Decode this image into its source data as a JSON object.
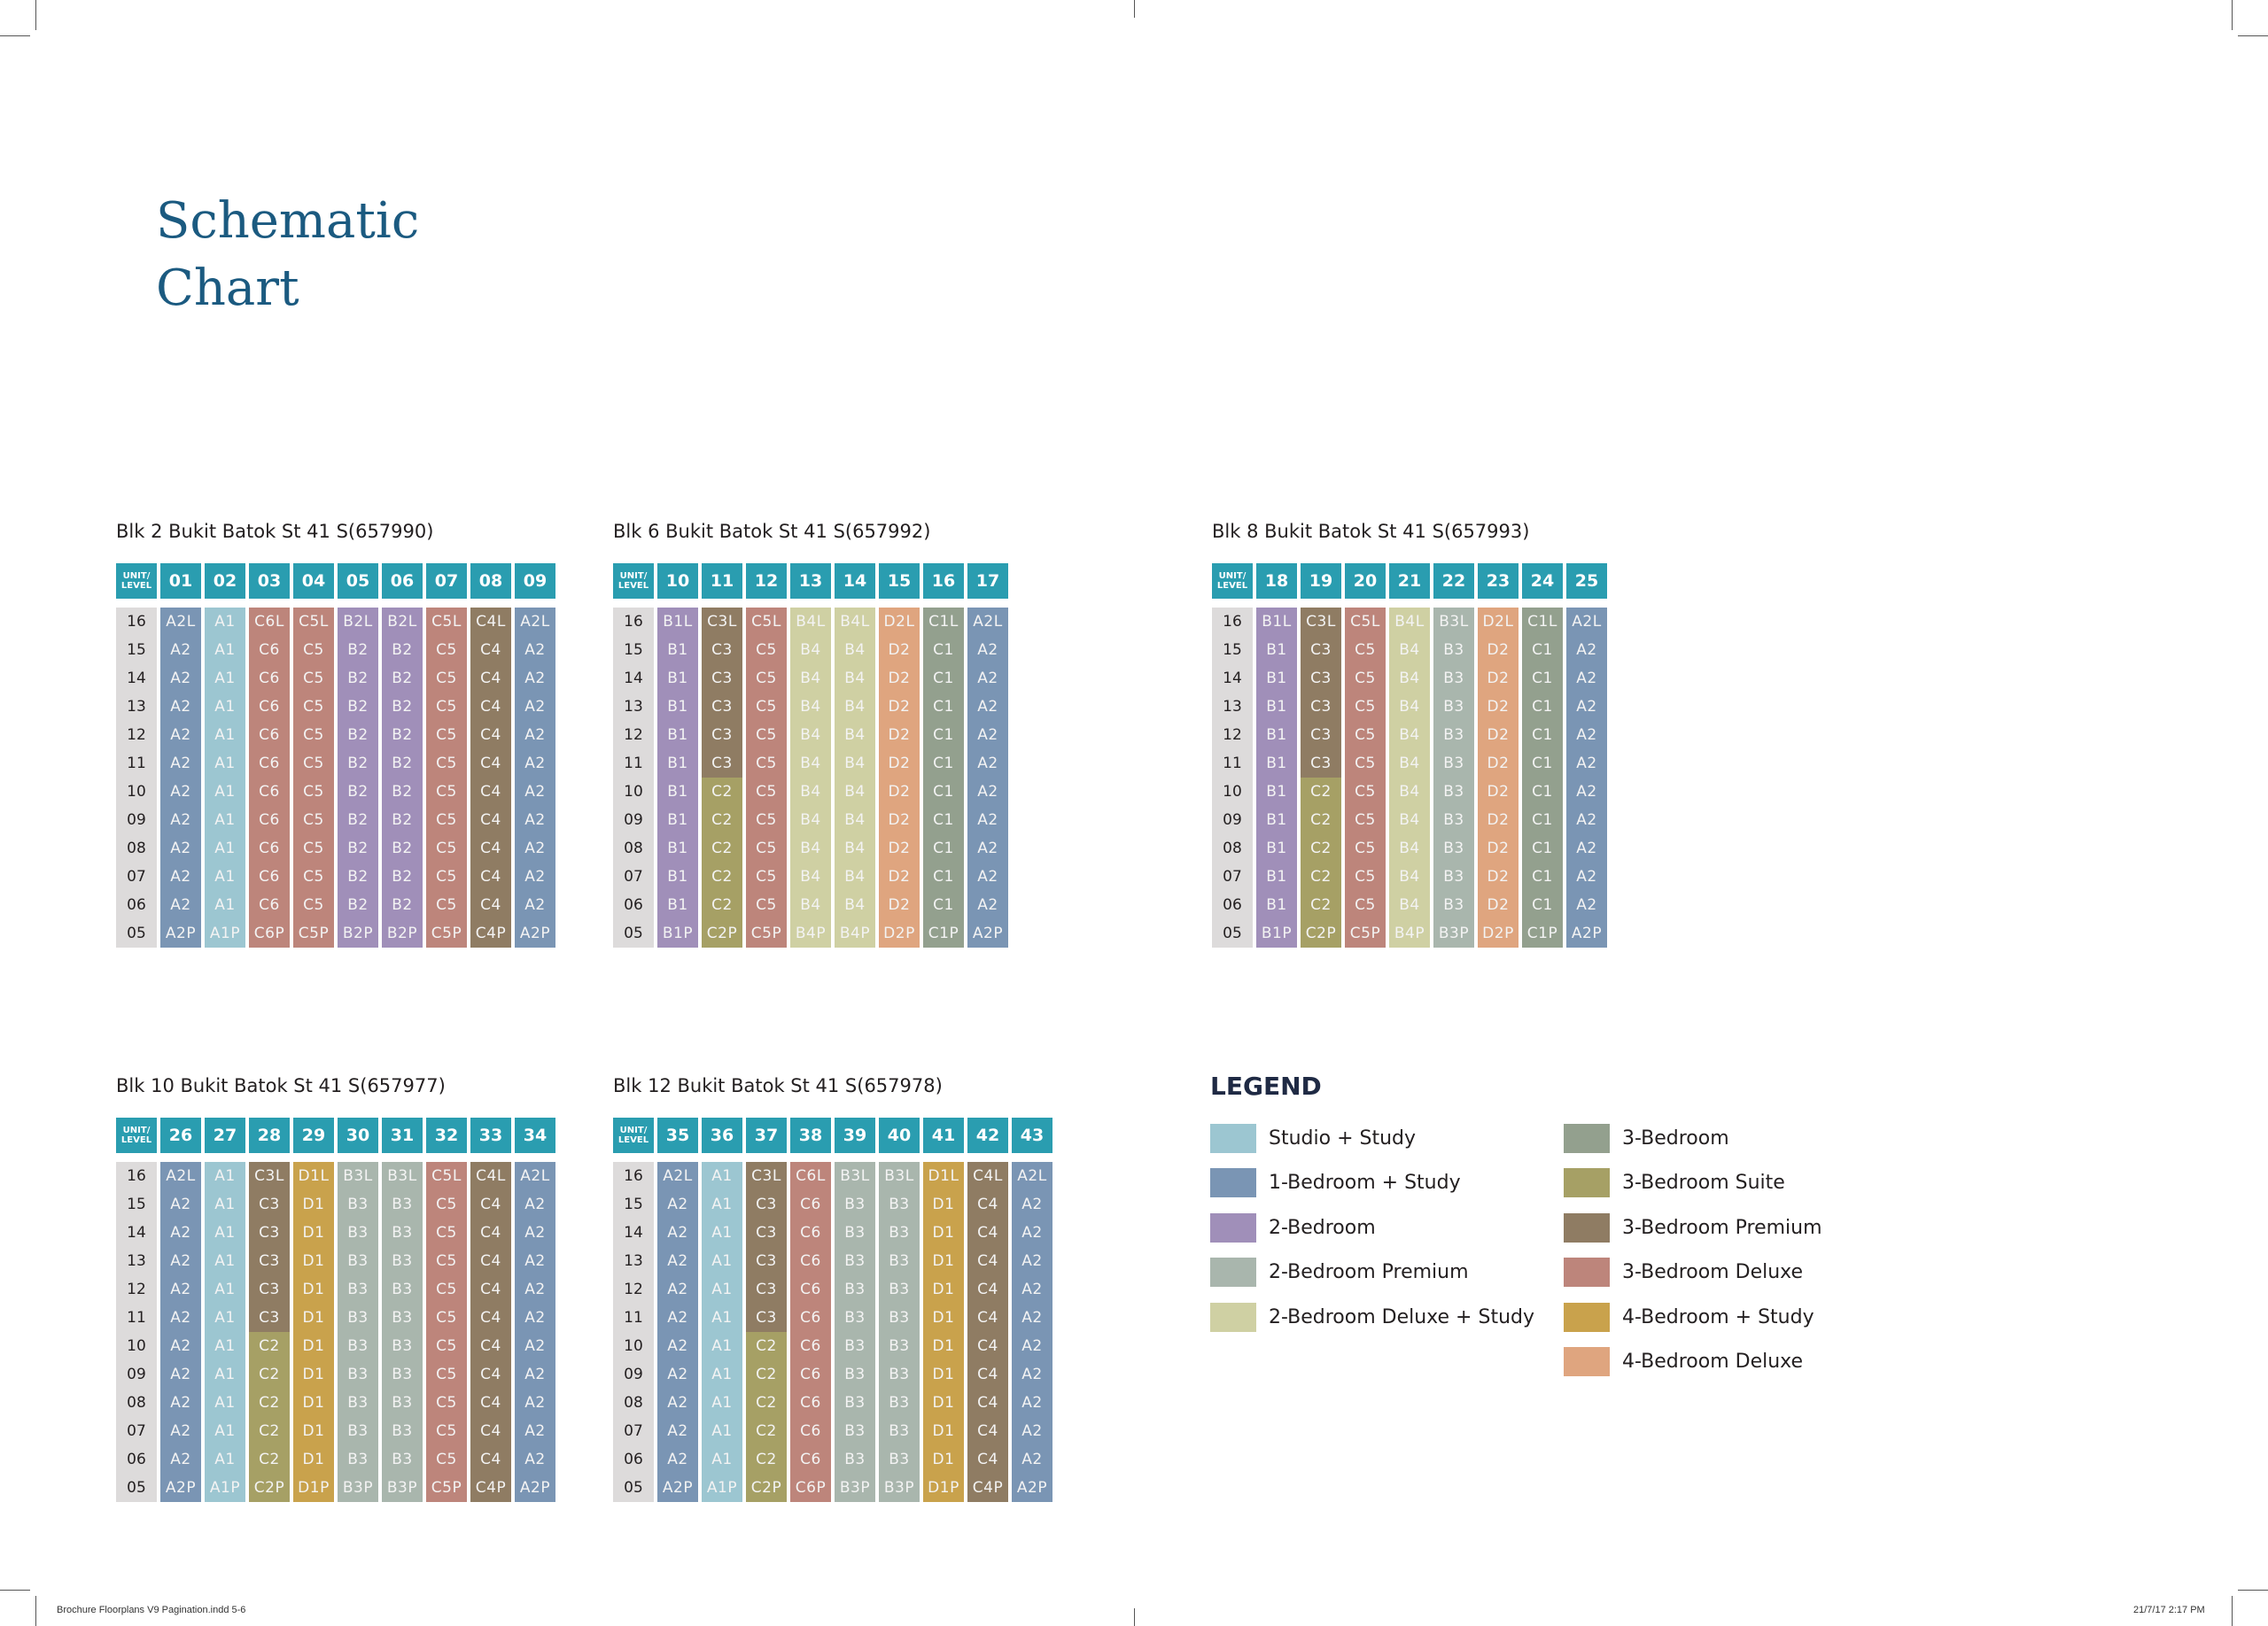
{
  "title": {
    "line1": "Schematic",
    "line2": "Chart"
  },
  "header_corner": {
    "l1": "UNIT/",
    "l2": "LEVEL"
  },
  "levels": [
    "16",
    "15",
    "14",
    "13",
    "12",
    "11",
    "10",
    "09",
    "08",
    "07",
    "06",
    "05"
  ],
  "colors": {
    "Studio + Study": "#9cc6d1",
    "1-Bedroom + Study": "#7a95b4",
    "2-Bedroom": "#a08fb9",
    "2-Bedroom Premium": "#a9b6ad",
    "2-Bedroom Deluxe + Study": "#cfd0a3",
    "3-Bedroom": "#93a08e",
    "3-Bedroom Suite": "#a6a065",
    "3-Bedroom Premium": "#8f7c63",
    "3-Bedroom Deluxe": "#bd857b",
    "4-Bedroom + Study": "#c9a24c",
    "4-Bedroom Deluxe": "#dfa57f",
    "header": "#2a9db0",
    "level": "#dddbdb"
  },
  "unit_types": {
    "A1": "Studio + Study",
    "A2": "1-Bedroom + Study",
    "B1": "2-Bedroom",
    "B3": "2-Bedroom Premium",
    "B4": "2-Bedroom Deluxe + Study",
    "B2": "2-Bedroom",
    "C1": "3-Bedroom",
    "C2": "3-Bedroom Suite",
    "C3": "3-Bedroom Premium",
    "C4": "3-Bedroom Premium",
    "C5": "3-Bedroom Deluxe",
    "C6": "3-Bedroom Deluxe",
    "D1": "4-Bedroom + Study",
    "D2": "4-Bedroom Deluxe"
  },
  "blocks": [
    {
      "title": "Blk 2 Bukit Batok St 41 S(657990)",
      "units": [
        "01",
        "02",
        "03",
        "04",
        "05",
        "06",
        "07",
        "08",
        "09"
      ],
      "rows": [
        [
          "A2L",
          "A1",
          "C6L",
          "C5L",
          "B2L",
          "B2L",
          "C5L",
          "C4L",
          "A2L"
        ],
        [
          "A2",
          "A1",
          "C6",
          "C5",
          "B2",
          "B2",
          "C5",
          "C4",
          "A2"
        ],
        [
          "A2",
          "A1",
          "C6",
          "C5",
          "B2",
          "B2",
          "C5",
          "C4",
          "A2"
        ],
        [
          "A2",
          "A1",
          "C6",
          "C5",
          "B2",
          "B2",
          "C5",
          "C4",
          "A2"
        ],
        [
          "A2",
          "A1",
          "C6",
          "C5",
          "B2",
          "B2",
          "C5",
          "C4",
          "A2"
        ],
        [
          "A2",
          "A1",
          "C6",
          "C5",
          "B2",
          "B2",
          "C5",
          "C4",
          "A2"
        ],
        [
          "A2",
          "A1",
          "C6",
          "C5",
          "B2",
          "B2",
          "C5",
          "C4",
          "A2"
        ],
        [
          "A2",
          "A1",
          "C6",
          "C5",
          "B2",
          "B2",
          "C5",
          "C4",
          "A2"
        ],
        [
          "A2",
          "A1",
          "C6",
          "C5",
          "B2",
          "B2",
          "C5",
          "C4",
          "A2"
        ],
        [
          "A2",
          "A1",
          "C6",
          "C5",
          "B2",
          "B2",
          "C5",
          "C4",
          "A2"
        ],
        [
          "A2",
          "A1",
          "C6",
          "C5",
          "B2",
          "B2",
          "C5",
          "C4",
          "A2"
        ],
        [
          "A2P",
          "A1P",
          "C6P",
          "C5P",
          "B2P",
          "B2P",
          "C5P",
          "C4P",
          "A2P"
        ]
      ]
    },
    {
      "title": "Blk 6 Bukit Batok St 41 S(657992)",
      "units": [
        "10",
        "11",
        "12",
        "13",
        "14",
        "15",
        "16",
        "17"
      ],
      "rows": [
        [
          "B1L",
          "C3L",
          "C5L",
          "B4L",
          "B4L",
          "D2L",
          "C1L",
          "A2L"
        ],
        [
          "B1",
          "C3",
          "C5",
          "B4",
          "B4",
          "D2",
          "C1",
          "A2"
        ],
        [
          "B1",
          "C3",
          "C5",
          "B4",
          "B4",
          "D2",
          "C1",
          "A2"
        ],
        [
          "B1",
          "C3",
          "C5",
          "B4",
          "B4",
          "D2",
          "C1",
          "A2"
        ],
        [
          "B1",
          "C3",
          "C5",
          "B4",
          "B4",
          "D2",
          "C1",
          "A2"
        ],
        [
          "B1",
          "C3",
          "C5",
          "B4",
          "B4",
          "D2",
          "C1",
          "A2"
        ],
        [
          "B1",
          "C2",
          "C5",
          "B4",
          "B4",
          "D2",
          "C1",
          "A2"
        ],
        [
          "B1",
          "C2",
          "C5",
          "B4",
          "B4",
          "D2",
          "C1",
          "A2"
        ],
        [
          "B1",
          "C2",
          "C5",
          "B4",
          "B4",
          "D2",
          "C1",
          "A2"
        ],
        [
          "B1",
          "C2",
          "C5",
          "B4",
          "B4",
          "D2",
          "C1",
          "A2"
        ],
        [
          "B1",
          "C2",
          "C5",
          "B4",
          "B4",
          "D2",
          "C1",
          "A2"
        ],
        [
          "B1P",
          "C2P",
          "C5P",
          "B4P",
          "B4P",
          "D2P",
          "C1P",
          "A2P"
        ]
      ]
    },
    {
      "title": "Blk 8 Bukit Batok St 41 S(657993)",
      "units": [
        "18",
        "19",
        "20",
        "21",
        "22",
        "23",
        "24",
        "25"
      ],
      "rows": [
        [
          "B1L",
          "C3L",
          "C5L",
          "B4L",
          "B3L",
          "D2L",
          "C1L",
          "A2L"
        ],
        [
          "B1",
          "C3",
          "C5",
          "B4",
          "B3",
          "D2",
          "C1",
          "A2"
        ],
        [
          "B1",
          "C3",
          "C5",
          "B4",
          "B3",
          "D2",
          "C1",
          "A2"
        ],
        [
          "B1",
          "C3",
          "C5",
          "B4",
          "B3",
          "D2",
          "C1",
          "A2"
        ],
        [
          "B1",
          "C3",
          "C5",
          "B4",
          "B3",
          "D2",
          "C1",
          "A2"
        ],
        [
          "B1",
          "C3",
          "C5",
          "B4",
          "B3",
          "D2",
          "C1",
          "A2"
        ],
        [
          "B1",
          "C2",
          "C5",
          "B4",
          "B3",
          "D2",
          "C1",
          "A2"
        ],
        [
          "B1",
          "C2",
          "C5",
          "B4",
          "B3",
          "D2",
          "C1",
          "A2"
        ],
        [
          "B1",
          "C2",
          "C5",
          "B4",
          "B3",
          "D2",
          "C1",
          "A2"
        ],
        [
          "B1",
          "C2",
          "C5",
          "B4",
          "B3",
          "D2",
          "C1",
          "A2"
        ],
        [
          "B1",
          "C2",
          "C5",
          "B4",
          "B3",
          "D2",
          "C1",
          "A2"
        ],
        [
          "B1P",
          "C2P",
          "C5P",
          "B4P",
          "B3P",
          "D2P",
          "C1P",
          "A2P"
        ]
      ]
    },
    {
      "title": "Blk 10 Bukit Batok St 41 S(657977)",
      "units": [
        "26",
        "27",
        "28",
        "29",
        "30",
        "31",
        "32",
        "33",
        "34"
      ],
      "rows": [
        [
          "A2L",
          "A1",
          "C3L",
          "D1L",
          "B3L",
          "B3L",
          "C5L",
          "C4L",
          "A2L"
        ],
        [
          "A2",
          "A1",
          "C3",
          "D1",
          "B3",
          "B3",
          "C5",
          "C4",
          "A2"
        ],
        [
          "A2",
          "A1",
          "C3",
          "D1",
          "B3",
          "B3",
          "C5",
          "C4",
          "A2"
        ],
        [
          "A2",
          "A1",
          "C3",
          "D1",
          "B3",
          "B3",
          "C5",
          "C4",
          "A2"
        ],
        [
          "A2",
          "A1",
          "C3",
          "D1",
          "B3",
          "B3",
          "C5",
          "C4",
          "A2"
        ],
        [
          "A2",
          "A1",
          "C3",
          "D1",
          "B3",
          "B3",
          "C5",
          "C4",
          "A2"
        ],
        [
          "A2",
          "A1",
          "C2",
          "D1",
          "B3",
          "B3",
          "C5",
          "C4",
          "A2"
        ],
        [
          "A2",
          "A1",
          "C2",
          "D1",
          "B3",
          "B3",
          "C5",
          "C4",
          "A2"
        ],
        [
          "A2",
          "A1",
          "C2",
          "D1",
          "B3",
          "B3",
          "C5",
          "C4",
          "A2"
        ],
        [
          "A2",
          "A1",
          "C2",
          "D1",
          "B3",
          "B3",
          "C5",
          "C4",
          "A2"
        ],
        [
          "A2",
          "A1",
          "C2",
          "D1",
          "B3",
          "B3",
          "C5",
          "C4",
          "A2"
        ],
        [
          "A2P",
          "A1P",
          "C2P",
          "D1P",
          "B3P",
          "B3P",
          "C5P",
          "C4P",
          "A2P"
        ]
      ]
    },
    {
      "title": "Blk 12 Bukit Batok St 41 S(657978)",
      "units": [
        "35",
        "36",
        "37",
        "38",
        "39",
        "40",
        "41",
        "42",
        "43"
      ],
      "rows": [
        [
          "A2L",
          "A1",
          "C3L",
          "C6L",
          "B3L",
          "B3L",
          "D1L",
          "C4L",
          "A2L"
        ],
        [
          "A2",
          "A1",
          "C3",
          "C6",
          "B3",
          "B3",
          "D1",
          "C4",
          "A2"
        ],
        [
          "A2",
          "A1",
          "C3",
          "C6",
          "B3",
          "B3",
          "D1",
          "C4",
          "A2"
        ],
        [
          "A2",
          "A1",
          "C3",
          "C6",
          "B3",
          "B3",
          "D1",
          "C4",
          "A2"
        ],
        [
          "A2",
          "A1",
          "C3",
          "C6",
          "B3",
          "B3",
          "D1",
          "C4",
          "A2"
        ],
        [
          "A2",
          "A1",
          "C3",
          "C6",
          "B3",
          "B3",
          "D1",
          "C4",
          "A2"
        ],
        [
          "A2",
          "A1",
          "C2",
          "C6",
          "B3",
          "B3",
          "D1",
          "C4",
          "A2"
        ],
        [
          "A2",
          "A1",
          "C2",
          "C6",
          "B3",
          "B3",
          "D1",
          "C4",
          "A2"
        ],
        [
          "A2",
          "A1",
          "C2",
          "C6",
          "B3",
          "B3",
          "D1",
          "C4",
          "A2"
        ],
        [
          "A2",
          "A1",
          "C2",
          "C6",
          "B3",
          "B3",
          "D1",
          "C4",
          "A2"
        ],
        [
          "A2",
          "A1",
          "C2",
          "C6",
          "B3",
          "B3",
          "D1",
          "C4",
          "A2"
        ],
        [
          "A2P",
          "A1P",
          "C2P",
          "C6P",
          "B3P",
          "B3P",
          "D1P",
          "C4P",
          "A2P"
        ]
      ]
    }
  ],
  "legend": {
    "title": "LEGEND",
    "col1": [
      "Studio + Study",
      "1-Bedroom + Study",
      "2-Bedroom",
      "2-Bedroom Premium",
      "2-Bedroom Deluxe + Study"
    ],
    "col2": [
      "3-Bedroom",
      "3-Bedroom Suite",
      "3-Bedroom Premium",
      "3-Bedroom Deluxe",
      "4-Bedroom + Study",
      "4-Bedroom Deluxe"
    ]
  },
  "footer": {
    "left": "Brochure Floorplans V9 Pagination.indd   5-6",
    "right": "21/7/17   2:17 PM"
  }
}
